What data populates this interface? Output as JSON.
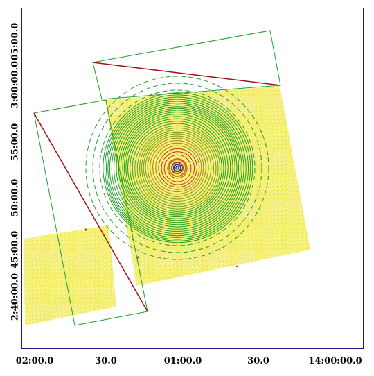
{
  "axes": {
    "x_ticks": [
      "02:00.0",
      "30.0",
      "01:00.0",
      "30.0",
      "14:00:00.0"
    ],
    "y_ticks": [
      "05:00.0",
      "3:00:00.0",
      "55:00.0",
      "50:00.0",
      "45:00.0",
      "2:40:00.0"
    ]
  },
  "colors": {
    "frame": "#1a1a8c",
    "exposure": "#f0ea4a",
    "contour": "#1f9e2a",
    "region": "#1f9e2a",
    "diagonal": "#a01010",
    "core_blue": "#1030c0",
    "core_red": "#c03020"
  },
  "contour_rings": 30,
  "dashed_circles": 3
}
